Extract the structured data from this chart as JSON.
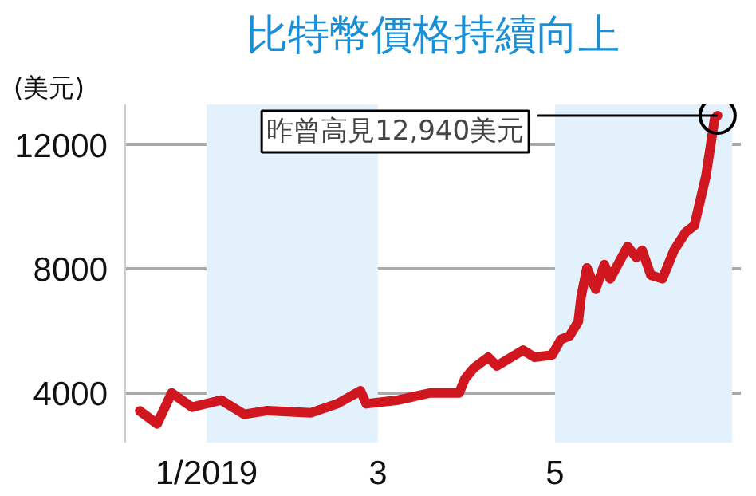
{
  "chart_data": {
    "type": "line",
    "title": "比特幣價格持續向上",
    "ylabel": "(美元)",
    "x": [
      "2018-12-09",
      "2018-12-15",
      "2018-12-20",
      "2018-12-27",
      "2019-01-06",
      "2019-01-14",
      "2019-01-22",
      "2019-02-06",
      "2019-02-15",
      "2019-02-23",
      "2019-02-25",
      "2019-03-08",
      "2019-03-19",
      "2019-03-29",
      "2019-03-31",
      "2019-04-03",
      "2019-04-08",
      "2019-04-11",
      "2019-04-20",
      "2019-04-24",
      "2019-04-30",
      "2019-05-03",
      "2019-05-06",
      "2019-05-09",
      "2019-05-10",
      "2019-05-12",
      "2019-05-15",
      "2019-05-18",
      "2019-05-20",
      "2019-05-26",
      "2019-05-29",
      "2019-05-31",
      "2019-06-03",
      "2019-06-07",
      "2019-06-11",
      "2019-06-15",
      "2019-06-18",
      "2019-06-22",
      "2019-06-25",
      "2019-06-26"
    ],
    "series": [
      {
        "color": "#d0161f",
        "values": [
          3420,
          3000,
          4000,
          3540,
          3770,
          3310,
          3430,
          3360,
          3650,
          4070,
          3650,
          3770,
          4000,
          4000,
          4460,
          4800,
          5150,
          4870,
          5380,
          5150,
          5220,
          5720,
          5840,
          6300,
          7100,
          8030,
          7340,
          8140,
          7680,
          8720,
          8370,
          8600,
          7800,
          7680,
          8600,
          9180,
          9400,
          11000,
          12850,
          12940
        ]
      }
    ],
    "xlim": [
      "2018-12-04",
      "2019-07-04"
    ],
    "xticks": [
      {
        "value": "2019-01-01",
        "label": "1/2019"
      },
      {
        "value": "2019-03-01",
        "label": "3"
      },
      {
        "value": "2019-05-01",
        "label": "5"
      }
    ],
    "ylim": [
      2400,
      13300
    ],
    "yticks": [
      4000,
      8000,
      12000
    ],
    "bands": [
      {
        "axis": "x",
        "from": "2019-01-01",
        "to": "2019-03-01",
        "color": "#e2f1fb"
      },
      {
        "axis": "x",
        "from": "2019-05-01",
        "to": "2019-07-01",
        "color": "#e2f1fb"
      }
    ],
    "annotations": [
      {
        "text": "昨曾高見12,940美元",
        "x": "2019-06-26",
        "y": 12940
      }
    ],
    "grid": "y",
    "marker": "none",
    "line_style": "solid"
  }
}
